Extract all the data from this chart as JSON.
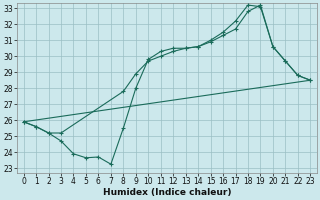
{
  "xlabel": "Humidex (Indice chaleur)",
  "bg_color": "#cce8ec",
  "grid_color": "#9bbfc4",
  "line_color": "#1a6b5a",
  "line1_x": [
    0,
    1,
    2,
    3,
    4,
    5,
    6,
    7,
    8,
    9,
    10,
    11,
    12,
    13,
    14,
    15,
    16,
    17,
    18,
    19,
    20,
    21,
    22,
    23
  ],
  "line1_y": [
    25.9,
    25.6,
    25.2,
    24.7,
    23.9,
    23.65,
    23.7,
    23.25,
    25.5,
    28.0,
    29.8,
    30.3,
    30.5,
    30.5,
    30.6,
    31.0,
    31.5,
    32.2,
    33.2,
    33.1,
    30.6,
    29.7,
    28.8,
    28.5
  ],
  "line2_x": [
    0,
    1,
    2,
    3,
    8,
    9,
    10,
    11,
    12,
    13,
    14,
    15,
    16,
    17,
    18,
    19,
    20,
    21,
    22,
    23
  ],
  "line2_y": [
    25.9,
    25.6,
    25.2,
    25.2,
    27.8,
    28.9,
    29.7,
    30.0,
    30.3,
    30.5,
    30.6,
    30.9,
    31.3,
    31.7,
    32.8,
    33.2,
    30.6,
    29.7,
    28.8,
    28.5
  ],
  "line3_x": [
    0,
    23
  ],
  "line3_y": [
    25.9,
    28.5
  ],
  "ylim_min": 23,
  "ylim_max": 33,
  "xlim_min": 0,
  "xlim_max": 23,
  "yticks": [
    23,
    24,
    25,
    26,
    27,
    28,
    29,
    30,
    31,
    32,
    33
  ],
  "xticks": [
    0,
    1,
    2,
    3,
    4,
    5,
    6,
    7,
    8,
    9,
    10,
    11,
    12,
    13,
    14,
    15,
    16,
    17,
    18,
    19,
    20,
    21,
    22,
    23
  ],
  "tick_fontsize": 5.5,
  "label_fontsize": 6.5
}
